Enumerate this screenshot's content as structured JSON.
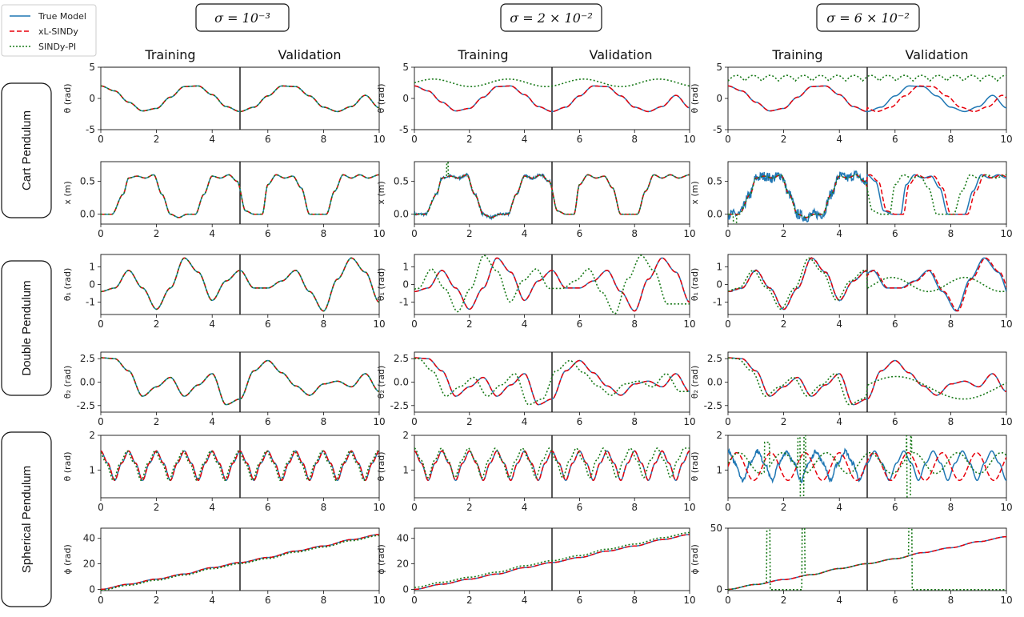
{
  "legend": [
    {
      "name": "True Model",
      "color": "#1f77b4",
      "style": "solid"
    },
    {
      "name": "xL-SINDy",
      "color": "#e8000b",
      "style": "dashed"
    },
    {
      "name": "SINDy-PI",
      "color": "#1a7a1a",
      "style": "dotted"
    }
  ],
  "columns": [
    {
      "sigma_label": "σ = 10⁻³",
      "train_label": "Training",
      "val_label": "Validation"
    },
    {
      "sigma_label": "σ = 2 × 10⁻²",
      "train_label": "Training",
      "val_label": "Validation"
    },
    {
      "sigma_label": "σ = 6 × 10⁻²",
      "train_label": "Training",
      "val_label": "Validation"
    }
  ],
  "rows": [
    {
      "label": "Cart Pendulum",
      "subplots": [
        "θ (rad)",
        "x (m)"
      ]
    },
    {
      "label": "Double Pendulum",
      "subplots": [
        "θ₁ (rad)",
        "θ₂ (rad)"
      ]
    },
    {
      "label": "Spherical Pendulum",
      "subplots": [
        "θ (rad)",
        "ϕ (rad)"
      ]
    }
  ],
  "chart_data": {
    "type": "line",
    "xlim": [
      0,
      10
    ],
    "xticks": [
      "0",
      "2",
      "4",
      "6",
      "8",
      "10"
    ],
    "split_x": 5,
    "subplots": [
      {
        "ylabel": "θ (rad)",
        "ylim": [
          -5,
          5
        ],
        "yticks": [
          "-5",
          "0",
          "5"
        ],
        "shown_yticks": [
          [
            "0",
            "-5"
          ],
          [
            "-5",
            "0",
            "5"
          ],
          [
            "-5",
            "0",
            "5"
          ]
        ]
      },
      {
        "ylabel": "x (m)",
        "ylim": [
          -0.15,
          0.8
        ],
        "yticks": [
          "0.0",
          "0.5"
        ]
      },
      {
        "ylabel": "θ₁ (rad)",
        "ylim": [
          -1.7,
          1.7
        ],
        "yticks": [
          "-1",
          "0",
          "1"
        ]
      },
      {
        "ylabel": "θ₂ (rad)",
        "ylim": [
          -3.2,
          3.2
        ],
        "yticks": [
          "-2.5",
          "0.0",
          "2.5"
        ]
      },
      {
        "ylabel": "θ (rad)",
        "ylim": [
          0.2,
          2
        ],
        "yticks": [
          "1",
          "2"
        ]
      },
      {
        "ylabel": "ϕ (rad)",
        "ylim": [
          -1,
          48
        ],
        "yticks": [
          "0",
          "20",
          "40"
        ],
        "alt_ylim": [
          -1,
          50
        ],
        "alt_yticks": [
          "0",
          "50"
        ]
      }
    ],
    "series": [
      {
        "name": "True Model",
        "note": "sampled points per subplot",
        "theta_cart": {
          "x": [
            0,
            0.5,
            1,
            1.5,
            2,
            2.5,
            3,
            3.5,
            4,
            4.5,
            5,
            5.5,
            6,
            6.5,
            7,
            7.5,
            8,
            8.5,
            9,
            9.5,
            10
          ],
          "y": [
            2.0,
            1.2,
            -0.6,
            -2.0,
            -1.6,
            0.2,
            1.9,
            2.0,
            0.6,
            -1.3,
            -2.1,
            -1.4,
            0.4,
            2.0,
            1.9,
            0.4,
            -1.4,
            -2.1,
            -1.3,
            0.5,
            -1.5
          ]
        },
        "x_cart": {
          "x": [
            0,
            0.4,
            0.8,
            1.0,
            1.3,
            1.6,
            1.9,
            2.2,
            2.5,
            2.8,
            3.1,
            3.4,
            3.7,
            4.0,
            4.3,
            4.6,
            4.9,
            5.2,
            5.5,
            5.8,
            6.0,
            6.3,
            6.6,
            6.9,
            7.2,
            7.5,
            7.8,
            8.1,
            8.4,
            8.7,
            9.0,
            9.3,
            9.6,
            10
          ],
          "y": [
            0,
            0,
            0.3,
            0.55,
            0.58,
            0.55,
            0.6,
            0.3,
            0.0,
            -0.05,
            0.0,
            0.0,
            0.3,
            0.58,
            0.55,
            0.6,
            0.5,
            0.05,
            0.0,
            0.0,
            0.45,
            0.6,
            0.55,
            0.58,
            0.4,
            0.0,
            0.0,
            0.0,
            0.35,
            0.6,
            0.55,
            0.6,
            0.55,
            0.6
          ]
        },
        "theta1": {
          "x": [
            0,
            0.5,
            1.0,
            1.5,
            2.0,
            2.5,
            3.0,
            3.5,
            4.0,
            4.5,
            5.0,
            5.5,
            6.0,
            6.5,
            7.0,
            7.5,
            8.0,
            8.5,
            9.0,
            9.5,
            10
          ],
          "y": [
            -0.4,
            -0.2,
            0.8,
            -0.2,
            -1.4,
            -0.2,
            1.5,
            0.7,
            -0.9,
            0.2,
            0.8,
            -0.2,
            -0.2,
            0.2,
            0.8,
            -0.4,
            -1.5,
            0.3,
            1.5,
            0.7,
            -1.0
          ]
        },
        "theta2": {
          "x": [
            0,
            0.5,
            1.0,
            1.5,
            2.0,
            2.5,
            3.0,
            3.5,
            4.0,
            4.5,
            5.0,
            5.5,
            6.0,
            6.5,
            7.0,
            7.5,
            8.0,
            8.5,
            9.0,
            9.5,
            10
          ],
          "y": [
            2.6,
            2.5,
            1.2,
            -1.5,
            -0.5,
            0.5,
            -1.5,
            -0.3,
            0.9,
            -2.4,
            -1.8,
            1.2,
            2.3,
            1.0,
            -0.4,
            -1.4,
            -0.2,
            0.1,
            -0.5,
            0.9,
            -1.0
          ]
        },
        "theta_sph": {
          "x": [
            0,
            0.25,
            0.5,
            0.75,
            1,
            1.25,
            1.5,
            1.75,
            2,
            2.25,
            2.5,
            2.75,
            3,
            3.25,
            3.5,
            3.75,
            4,
            4.25,
            4.5,
            4.75,
            5,
            5.25,
            5.5,
            5.75,
            6,
            6.25,
            6.5,
            6.75,
            7,
            7.25,
            7.5,
            7.75,
            8,
            8.25,
            8.5,
            8.75,
            9,
            9.25,
            9.5,
            9.75,
            10
          ],
          "y": [
            1.55,
            1.2,
            0.7,
            1.2,
            1.55,
            1.2,
            0.7,
            1.2,
            1.55,
            1.2,
            0.7,
            1.2,
            1.55,
            1.2,
            0.7,
            1.2,
            1.55,
            1.2,
            0.7,
            1.2,
            1.55,
            1.2,
            0.7,
            1.2,
            1.55,
            1.2,
            0.7,
            1.2,
            1.55,
            1.2,
            0.7,
            1.2,
            1.55,
            1.2,
            0.7,
            1.2,
            1.55,
            1.2,
            0.7,
            1.2,
            1.55
          ]
        },
        "phi": {
          "x": [
            0,
            1,
            2,
            3,
            4,
            5,
            6,
            7,
            8,
            9,
            10
          ],
          "y": [
            0,
            4,
            8,
            12,
            17,
            21,
            25,
            30,
            34,
            39,
            43
          ]
        }
      },
      {
        "name": "xL-SINDy",
        "note": "overlaps the True Model in columns 1 and 2"
      },
      {
        "name": "SINDy-PI",
        "note": "diverges in the noisier columns"
      }
    ]
  }
}
